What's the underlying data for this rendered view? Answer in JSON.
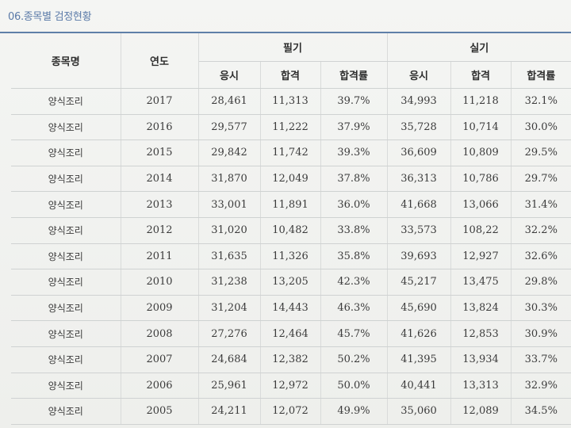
{
  "section_title": "06.종목별 검정현황",
  "headers": {
    "item": "종목명",
    "year": "연도",
    "written": "필기",
    "practical": "실기",
    "applied": "응시",
    "passed": "합격",
    "pass_rate": "합격률"
  },
  "rows": [
    {
      "item": "양식조리",
      "year": "2017",
      "w_applied": "28,461",
      "w_passed": "11,313",
      "w_rate": "39.7%",
      "p_applied": "34,993",
      "p_passed": "11,218",
      "p_rate": "32.1%"
    },
    {
      "item": "양식조리",
      "year": "2016",
      "w_applied": "29,577",
      "w_passed": "11,222",
      "w_rate": "37.9%",
      "p_applied": "35,728",
      "p_passed": "10,714",
      "p_rate": "30.0%"
    },
    {
      "item": "양식조리",
      "year": "2015",
      "w_applied": "29,842",
      "w_passed": "11,742",
      "w_rate": "39.3%",
      "p_applied": "36,609",
      "p_passed": "10,809",
      "p_rate": "29.5%"
    },
    {
      "item": "양식조리",
      "year": "2014",
      "w_applied": "31,870",
      "w_passed": "12,049",
      "w_rate": "37.8%",
      "p_applied": "36,313",
      "p_passed": "10,786",
      "p_rate": "29.7%"
    },
    {
      "item": "양식조리",
      "year": "2013",
      "w_applied": "33,001",
      "w_passed": "11,891",
      "w_rate": "36.0%",
      "p_applied": "41,668",
      "p_passed": "13,066",
      "p_rate": "31.4%"
    },
    {
      "item": "양식조리",
      "year": "2012",
      "w_applied": "31,020",
      "w_passed": "10,482",
      "w_rate": "33.8%",
      "p_applied": "33,573",
      "p_passed": "108,22",
      "p_rate": "32.2%"
    },
    {
      "item": "양식조리",
      "year": "2011",
      "w_applied": "31,635",
      "w_passed": "11,326",
      "w_rate": "35.8%",
      "p_applied": "39,693",
      "p_passed": "12,927",
      "p_rate": "32.6%"
    },
    {
      "item": "양식조리",
      "year": "2010",
      "w_applied": "31,238",
      "w_passed": "13,205",
      "w_rate": "42.3%",
      "p_applied": "45,217",
      "p_passed": "13,475",
      "p_rate": "29.8%"
    },
    {
      "item": "양식조리",
      "year": "2009",
      "w_applied": "31,204",
      "w_passed": "14,443",
      "w_rate": "46.3%",
      "p_applied": "45,690",
      "p_passed": "13,824",
      "p_rate": "30.3%"
    },
    {
      "item": "양식조리",
      "year": "2008",
      "w_applied": "27,276",
      "w_passed": "12,464",
      "w_rate": "45.7%",
      "p_applied": "41,626",
      "p_passed": "12,853",
      "p_rate": "30.9%"
    },
    {
      "item": "양식조리",
      "year": "2007",
      "w_applied": "24,684",
      "w_passed": "12,382",
      "w_rate": "50.2%",
      "p_applied": "41,395",
      "p_passed": "13,934",
      "p_rate": "33.7%"
    },
    {
      "item": "양식조리",
      "year": "2006",
      "w_applied": "25,961",
      "w_passed": "12,972",
      "w_rate": "50.0%",
      "p_applied": "40,441",
      "p_passed": "13,313",
      "p_rate": "32.9%"
    },
    {
      "item": "양식조리",
      "year": "2005",
      "w_applied": "24,211",
      "w_passed": "12,072",
      "w_rate": "49.9%",
      "p_applied": "35,060",
      "p_passed": "12,089",
      "p_rate": "34.5%"
    }
  ]
}
